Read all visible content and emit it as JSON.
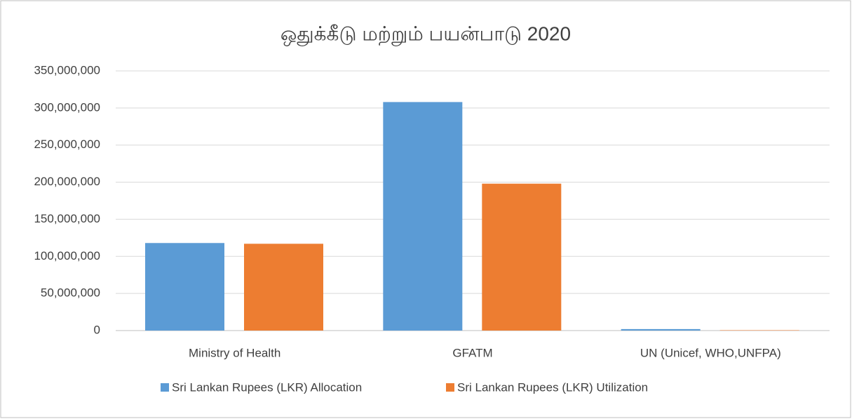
{
  "chart_data": {
    "type": "bar",
    "title": "ஒதுக்கீடு மற்றும் பயன்பாடு 2020",
    "categories": [
      "Ministry of Health",
      "GFATM",
      "UN (Unicef, WHO,UNFPA)"
    ],
    "series": [
      {
        "name": "Sri Lankan Rupees (LKR) Allocation",
        "color": "#5b9bd5",
        "values": [
          118000000,
          308000000,
          2000000
        ]
      },
      {
        "name": "Sri Lankan Rupees (LKR) Utilization",
        "color": "#ed7d31",
        "values": [
          117000000,
          198000000,
          500000
        ]
      }
    ],
    "ylim": [
      0,
      350000000
    ],
    "yticks": [
      0,
      {
        "value": 50000000,
        "label": "50,000,000"
      },
      {
        "value": 100000000,
        "label": "100,000,000"
      },
      {
        "value": 150000000,
        "label": "150,000,000"
      },
      {
        "value": 200000000,
        "label": "200,000,000"
      },
      {
        "value": 250000000,
        "label": "250,000,000"
      },
      {
        "value": 300000000,
        "label": "300,000,000"
      },
      {
        "value": 350000000,
        "label": "350,000,000"
      }
    ],
    "grid": true,
    "legend": "bottom"
  }
}
